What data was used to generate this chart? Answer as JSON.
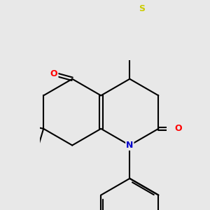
{
  "background_color": "#e8e8e8",
  "bond_color": "#000000",
  "bond_width": 1.5,
  "atom_colors": {
    "O": "#ff0000",
    "N": "#0000cc",
    "S": "#cccc00",
    "C": "#000000"
  },
  "font_size_atom": 9,
  "figsize": [
    3.0,
    3.0
  ],
  "dpi": 100
}
